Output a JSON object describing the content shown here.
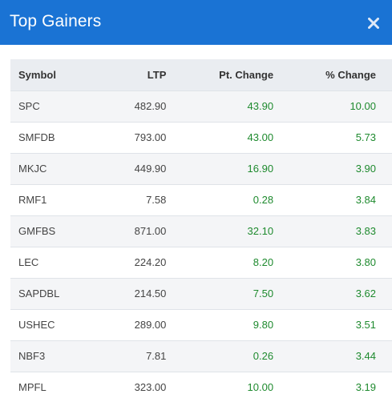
{
  "modal": {
    "title": "Top Gainers",
    "close_icon": "close-icon",
    "header_color": "#1a73d4"
  },
  "table": {
    "headers": {
      "symbol": "Symbol",
      "ltp": "LTP",
      "pt_change": "Pt. Change",
      "pct_change": "% Change"
    },
    "rows": [
      {
        "symbol": "SPC",
        "ltp": "482.90",
        "pt_change": "43.90",
        "pct_change": "10.00"
      },
      {
        "symbol": "SMFDB",
        "ltp": "793.00",
        "pt_change": "43.00",
        "pct_change": "5.73"
      },
      {
        "symbol": "MKJC",
        "ltp": "449.90",
        "pt_change": "16.90",
        "pct_change": "3.90"
      },
      {
        "symbol": "RMF1",
        "ltp": "7.58",
        "pt_change": "0.28",
        "pct_change": "3.84"
      },
      {
        "symbol": "GMFBS",
        "ltp": "871.00",
        "pt_change": "32.10",
        "pct_change": "3.83"
      },
      {
        "symbol": "LEC",
        "ltp": "224.20",
        "pt_change": "8.20",
        "pct_change": "3.80"
      },
      {
        "symbol": "SAPDBL",
        "ltp": "214.50",
        "pt_change": "7.50",
        "pct_change": "3.62"
      },
      {
        "symbol": "USHEC",
        "ltp": "289.00",
        "pt_change": "9.80",
        "pct_change": "3.51"
      },
      {
        "symbol": "NBF3",
        "ltp": "7.81",
        "pt_change": "0.26",
        "pct_change": "3.44"
      },
      {
        "symbol": "MPFL",
        "ltp": "323.00",
        "pt_change": "10.00",
        "pct_change": "3.19"
      }
    ],
    "positive_color": "#1e8a2e"
  }
}
